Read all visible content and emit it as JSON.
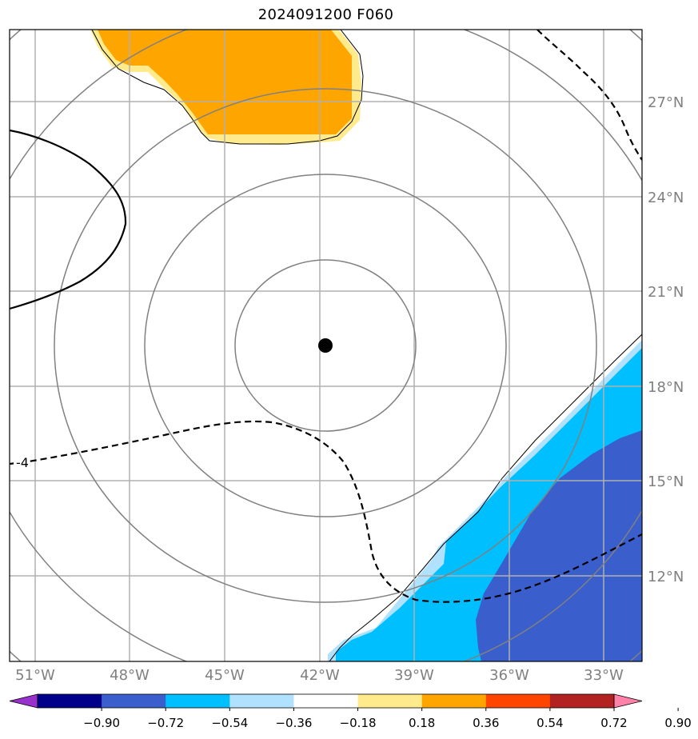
{
  "title": "2024091200 F060",
  "map": {
    "lon_labels": [
      "51°W",
      "48°W",
      "45°W",
      "42°W",
      "39°W",
      "36°W",
      "33°W"
    ],
    "lat_labels": [
      "27°N",
      "24°N",
      "21°N",
      "18°N",
      "15°N",
      "12°N"
    ],
    "contour_label": "-4",
    "label_color": "#808080",
    "grid_color": "#b0b0b0",
    "range_ring_color": "#808080",
    "center_marker_color": "#000000"
  },
  "colorbar": {
    "ticks": [
      "−0.90",
      "−0.72",
      "−0.54",
      "−0.36",
      "−0.18",
      "0.18",
      "0.36",
      "0.54",
      "0.72",
      "0.90"
    ],
    "colors": [
      "#9932cc",
      "#00008b",
      "#3a5fcd",
      "#00bfff",
      "#b0e2ff",
      "#ffffff",
      "#ffeb8c",
      "#ffa500",
      "#ff4500",
      "#b22222",
      "#ff82ab"
    ]
  }
}
